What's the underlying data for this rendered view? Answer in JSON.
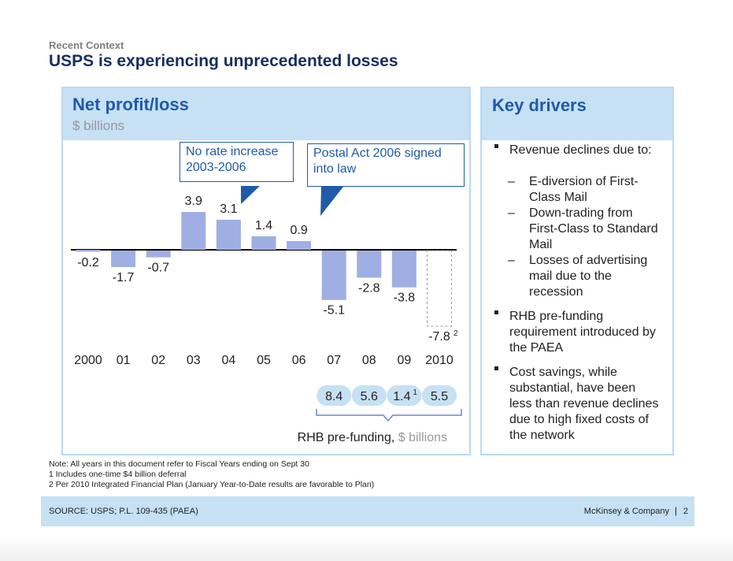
{
  "header": {
    "context": "Recent Context",
    "headline": "USPS is experiencing unprecedented losses"
  },
  "left_panel": {
    "title": "Net profit/loss",
    "unit": "$ billions",
    "callouts": [
      "No rate increase 2003-2006",
      "Postal Act 2006 signed into law"
    ],
    "prefunding_label": "RHB pre-funding,",
    "prefunding_unit": "$ billions"
  },
  "chart_data": {
    "type": "bar",
    "title": "Net profit/loss",
    "ylabel": "$ billions",
    "categories": [
      "2000",
      "01",
      "02",
      "03",
      "04",
      "05",
      "06",
      "07",
      "08",
      "09",
      "2010"
    ],
    "values": [
      -0.2,
      -1.7,
      -0.7,
      3.9,
      3.1,
      1.4,
      0.9,
      -5.1,
      -2.8,
      -3.8,
      -7.8
    ],
    "value_labels": [
      "-0.2",
      "-1.7",
      "-0.7",
      "3.9",
      "3.1",
      "1.4",
      "0.9",
      "-5.1",
      "-2.8",
      "-3.8",
      "-7.8"
    ],
    "label_superscripts": {
      "10": "2"
    },
    "projected_index": 10,
    "bar_color": "#9fafe3",
    "projected_color": "#9a9a9a",
    "ylim": [
      -8.3,
      4.3
    ],
    "rhb_prefunding": {
      "categories": [
        "07",
        "08",
        "09",
        "2010"
      ],
      "values": [
        8.4,
        5.6,
        1.4,
        5.5
      ],
      "labels": [
        "8.4",
        "5.6",
        "1.4",
        "5.5"
      ],
      "superscripts": [
        "",
        "",
        "1",
        ""
      ],
      "pill_color": "#c6e0f4"
    }
  },
  "drivers": {
    "title": "Key drivers",
    "bullets": [
      {
        "lines": [
          "Revenue declines due to:"
        ],
        "subs": [
          [
            "E-diversion of First-",
            "Class Mail"
          ],
          [
            "Down-trading from",
            "First-Class to Standard",
            "Mail"
          ],
          [
            "Losses of advertising",
            "mail due to the",
            "recession"
          ]
        ]
      },
      {
        "lines": [
          "RHB pre-funding",
          "requirement introduced by",
          "the PAEA"
        ],
        "subs": []
      },
      {
        "lines": [
          "Cost savings, while",
          "substantial, have been",
          "less than revenue declines",
          "due to high fixed costs of",
          "the network"
        ],
        "subs": []
      }
    ]
  },
  "notes": [
    "Note: All years in this document refer to Fiscal Years ending on Sept 30",
    "1 Includes one-time $4 billion deferral",
    "2 Per 2010 Integrated Financial Plan (January Year-to-Date results are favorable to Plan)"
  ],
  "footer": {
    "source": "SOURCE: USPS; P.L. 109-435 (PAEA)",
    "brand": "McKinsey & Company",
    "separator": "|",
    "page": "2"
  },
  "colors": {
    "header_blue": "#16305c",
    "accent_blue": "#1f5ba8",
    "panel_fill": "#c6e0f4"
  }
}
